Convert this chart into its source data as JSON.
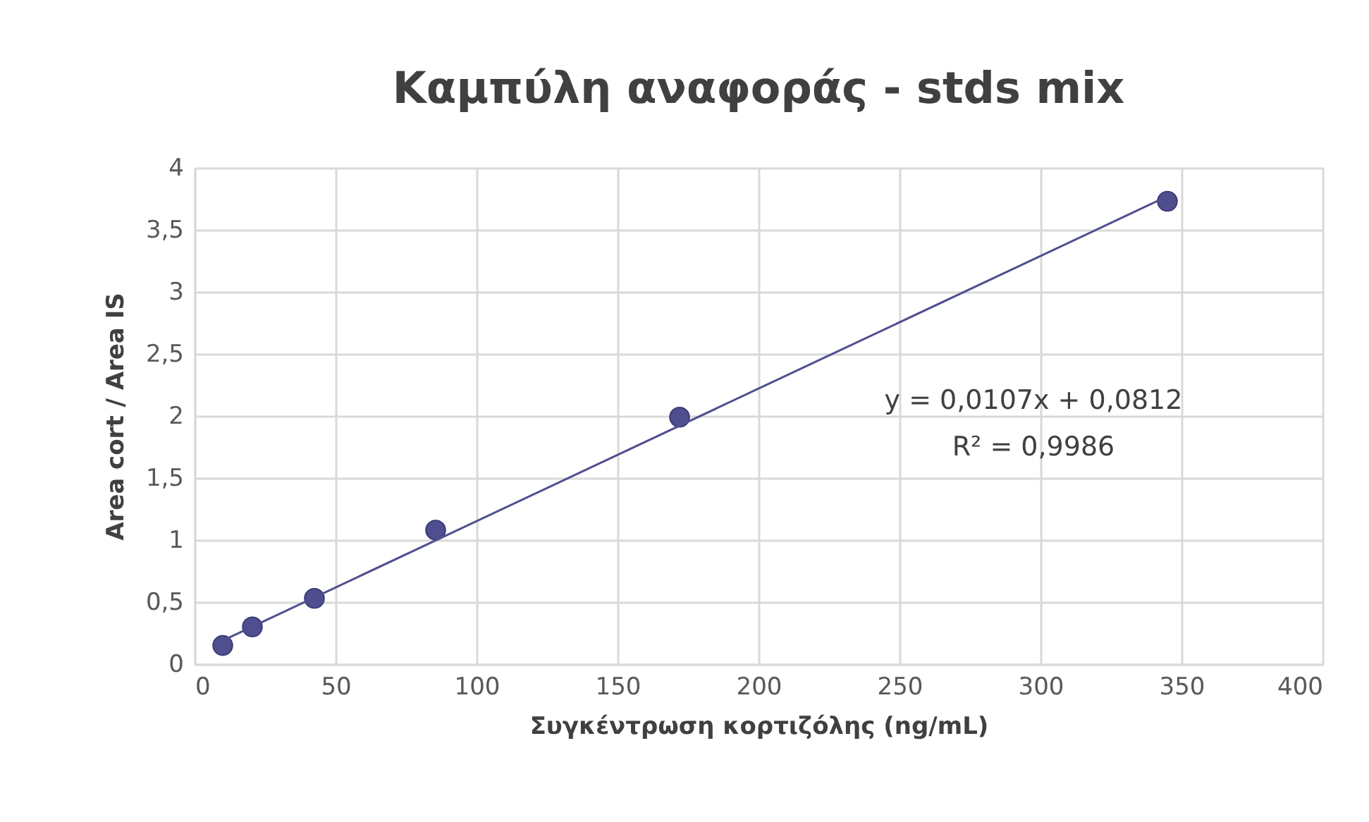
{
  "chart_data": {
    "type": "scatter",
    "title": "Καμπύλη αναφοράς - stds mix",
    "xlabel": "Συγκέντρωση κορτιζόλης (ng/mL)",
    "ylabel": "Area cort / Area IS",
    "series": [
      {
        "color": "#4f4f8f",
        "x": [
          10,
          20.5,
          42.5,
          85.5,
          172,
          345
        ],
        "values": [
          0.15,
          0.3,
          0.53,
          1.08,
          1.99,
          3.73
        ]
      },
      {
        "type": "line",
        "marker": "none",
        "color": "#4f4f8f",
        "x": [
          10,
          345
        ],
        "values": [
          0.19,
          3.77
        ]
      }
    ],
    "xlim": [
      0,
      400
    ],
    "xticks": [
      0,
      50,
      100,
      150,
      200,
      250,
      300,
      350,
      400
    ],
    "ylim": [
      0,
      4
    ],
    "yticks": [
      0,
      {
        "value": 0.5,
        "label": "0,5"
      },
      1,
      {
        "value": 1.5,
        "label": "1,5"
      },
      2,
      {
        "value": 2.5,
        "label": "2,5"
      },
      3,
      {
        "value": 3.5,
        "label": "3,5"
      },
      4
    ],
    "annotations": [
      "y = 0,0107x + 0,0812",
      "R² = 0,9986"
    ],
    "grid": true,
    "marker": "circle"
  }
}
